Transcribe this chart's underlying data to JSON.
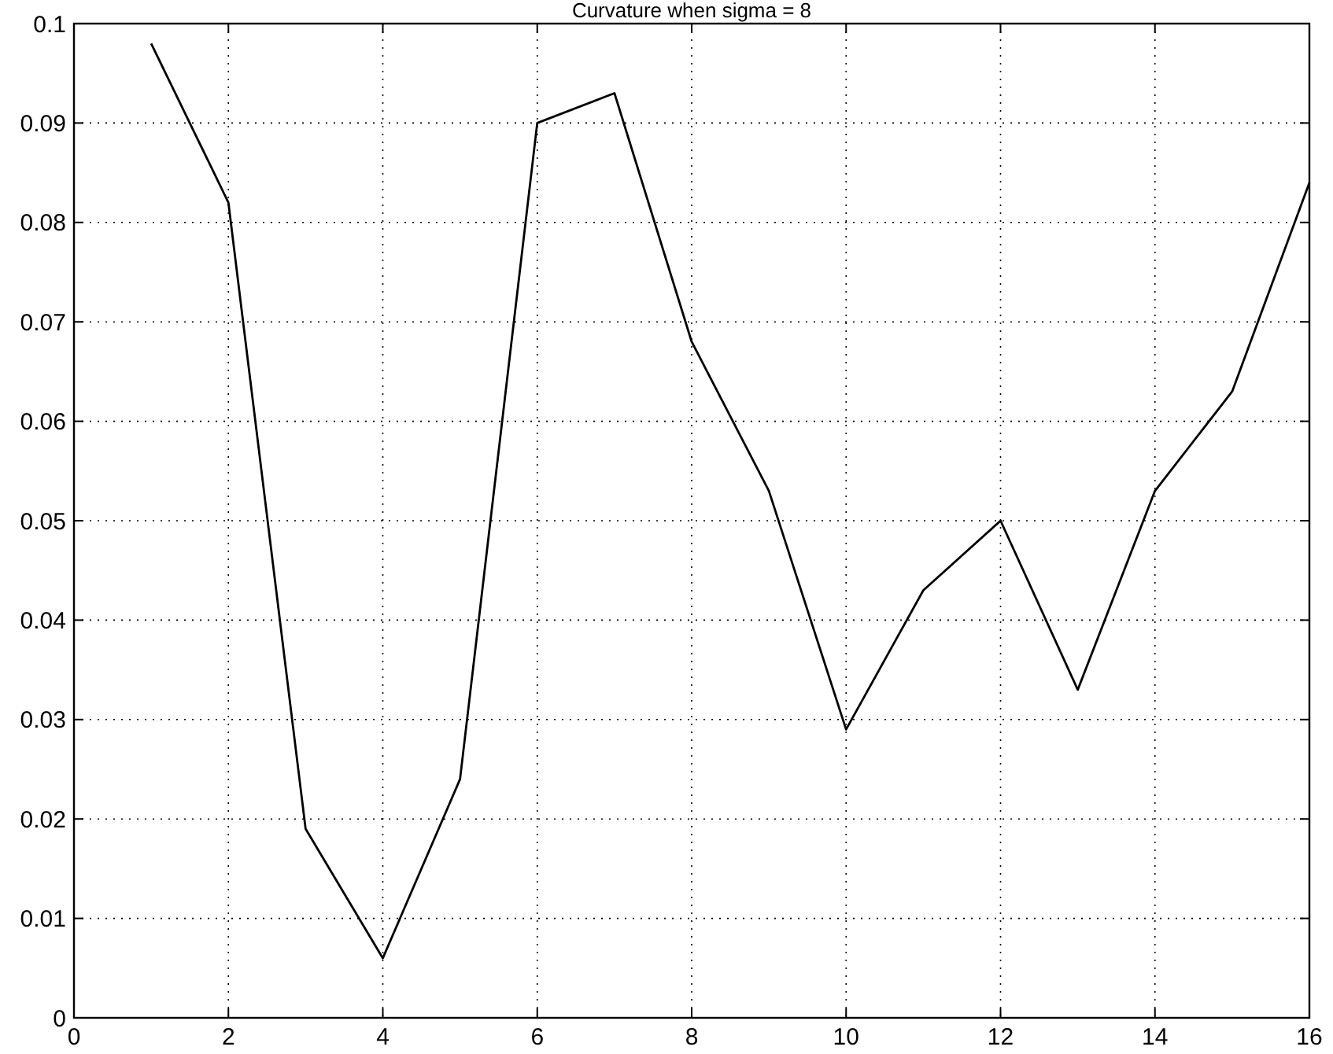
{
  "chart_data": {
    "type": "line",
    "title": "Curvature when sigma = 8",
    "x": [
      1,
      2,
      3,
      4,
      5,
      6,
      7,
      8,
      9,
      10,
      11,
      12,
      13,
      14,
      15,
      16
    ],
    "series": [
      {
        "color": "#000000",
        "values": [
          0.098,
          0.082,
          0.019,
          0.006,
          0.024,
          0.09,
          0.093,
          0.068,
          0.053,
          0.029,
          0.043,
          0.05,
          0.033,
          0.053,
          0.063,
          0.084
        ]
      }
    ],
    "xlim": [
      0,
      16
    ],
    "xticks": [
      0,
      2,
      4,
      6,
      8,
      10,
      12,
      14,
      16
    ],
    "ylim": [
      0,
      0.1
    ],
    "yticks": [
      0,
      0.01,
      0.02,
      0.03,
      0.04,
      0.05,
      0.06,
      0.07,
      0.08,
      0.09,
      0.1
    ],
    "grid": true,
    "marker": "none",
    "line_style": "solid"
  }
}
